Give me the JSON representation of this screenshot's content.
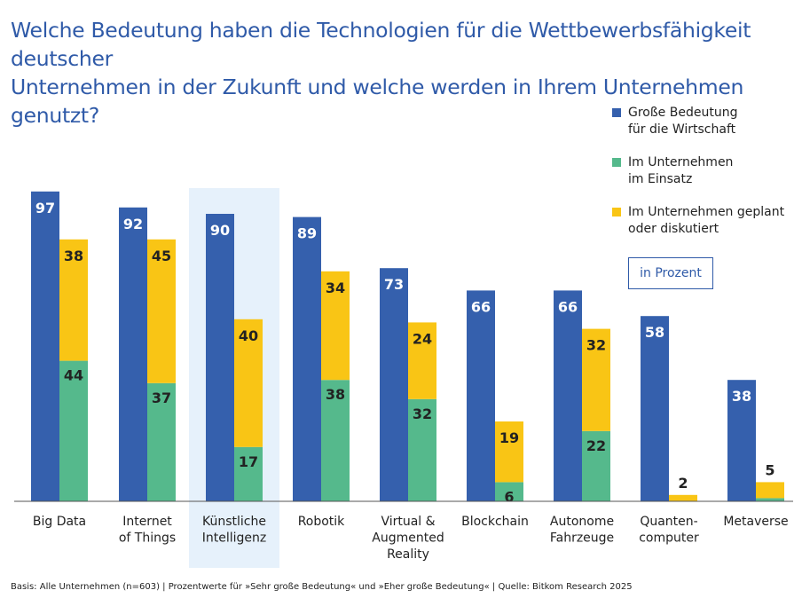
{
  "title_line1": "Welche Bedeutung haben die Technologien für die Wettbewerbsfähigkeit deutscher",
  "title_line2": "Unternehmen in der Zukunft und welche werden in Ihrem Unternehmen genutzt?",
  "unit_label": "in Prozent",
  "footnote": "Basis: Alle Unternehmen (n=603) | Prozentwerte für »Sehr große Bedeutung« und »Eher große Bedeutung« | Quelle: Bitkom Research 2025",
  "colors": {
    "blue": "#3560ad",
    "green": "#55b98c",
    "yellow": "#f9c515",
    "highlight": "#e6f1fb",
    "title": "#2f5aa8"
  },
  "chart_data": {
    "type": "bar",
    "stacked_series": [
      "Im Unternehmen im Einsatz",
      "Im Unternehmen geplant oder diskutiert"
    ],
    "highlighted_category": "Künstliche Intelligenz",
    "categories": [
      [
        "Big Data"
      ],
      [
        "Internet",
        "of Things"
      ],
      [
        "Künstliche",
        "Intelligenz"
      ],
      [
        "Robotik"
      ],
      [
        "Virtual &",
        "Augmented",
        "Reality"
      ],
      [
        "Blockchain"
      ],
      [
        "Autonome",
        "Fahrzeuge"
      ],
      [
        "Quanten-",
        "computer"
      ],
      [
        "Metaverse"
      ]
    ],
    "series": [
      {
        "name": "Große Bedeutung für die Wirtschaft",
        "legend": [
          "Große Bedeutung",
          "für die Wirtschaft"
        ],
        "color": "#3560ad",
        "values": [
          97,
          92,
          90,
          89,
          73,
          66,
          66,
          58,
          38
        ]
      },
      {
        "name": "Im Unternehmen im Einsatz",
        "legend": [
          "Im Unternehmen",
          "im Einsatz"
        ],
        "color": "#55b98c",
        "values": [
          44,
          37,
          17,
          38,
          32,
          6,
          22,
          0,
          1
        ]
      },
      {
        "name": "Im Unternehmen geplant oder diskutiert",
        "legend": [
          "Im Unternehmen geplant",
          "oder diskutiert"
        ],
        "color": "#f9c515",
        "values": [
          38,
          45,
          40,
          34,
          24,
          19,
          32,
          2,
          5
        ]
      }
    ],
    "ylim": [
      0,
      100
    ]
  }
}
